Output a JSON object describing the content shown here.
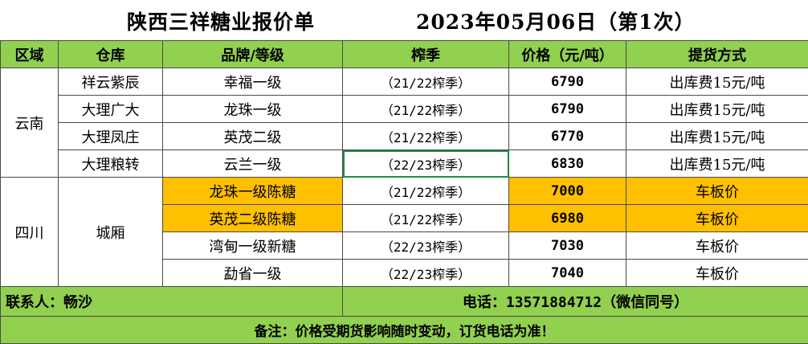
{
  "title": {
    "company": "陕西三祥糖业报价单",
    "date": "2023年05月06日（第1次）"
  },
  "headers": {
    "region": "区域",
    "warehouse": "仓库",
    "brand": "品牌/等级",
    "season": "榨季",
    "price": "价格（元/吨）",
    "delivery": "提货方式"
  },
  "regions": {
    "yunnan": "云南",
    "sichuan": "四川"
  },
  "rows": [
    {
      "warehouse": "祥云紫辰",
      "brand": "幸福一级",
      "season": "（21/22榨季）",
      "price": "6790",
      "delivery": "出库费15元/吨"
    },
    {
      "warehouse": "大理广大",
      "brand": "龙珠一级",
      "season": "（21/22榨季）",
      "price": "6790",
      "delivery": "出库费15元/吨"
    },
    {
      "warehouse": "大理凤庄",
      "brand": "英茂二级",
      "season": "（21/22榨季）",
      "price": "6770",
      "delivery": "出库费15元/吨"
    },
    {
      "warehouse": "大理粮转",
      "brand": "云兰一级",
      "season": "（22/23榨季）",
      "price": "6830",
      "delivery": "出库费15元/吨"
    },
    {
      "warehouse": "城厢",
      "brand": "龙珠一级陈糖",
      "season": "（21/22榨季）",
      "price": "7000",
      "delivery": "车板价"
    },
    {
      "warehouse": "",
      "brand": "英茂二级陈糖",
      "season": "（21/22榨季）",
      "price": "6980",
      "delivery": "车板价"
    },
    {
      "warehouse": "",
      "brand": "湾甸一级新糖",
      "season": "（22/23榨季）",
      "price": "7030",
      "delivery": "车板价"
    },
    {
      "warehouse": "",
      "brand": "勐省一级",
      "season": "（22/23榨季）",
      "price": "7040",
      "delivery": "车板价"
    }
  ],
  "footer": {
    "contact": "联系人：畅沙",
    "phone_label": "电话：",
    "phone_number": "13571884712",
    "phone_note": "（微信同号）",
    "note": "备注：价格受期货影响随时变动，订货电话为准！"
  },
  "colors": {
    "header_green": "#92d050",
    "highlight_orange": "#ffc000",
    "selection": "#1f8a4c"
  }
}
